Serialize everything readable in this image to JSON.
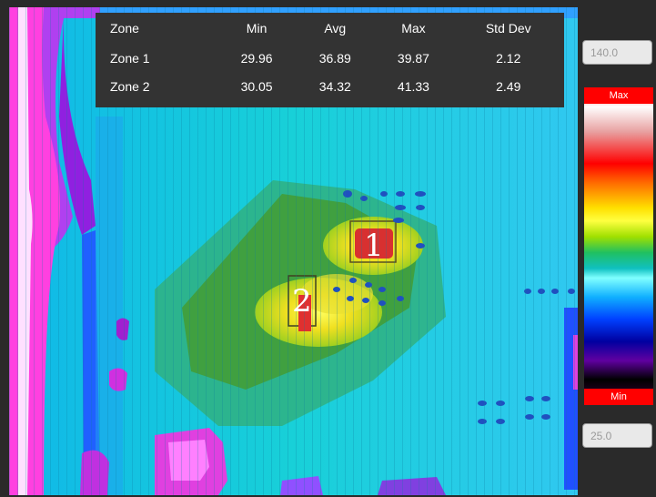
{
  "stats_table": {
    "headers": [
      "Zone",
      "Min",
      "Avg",
      "Max",
      "Std Dev"
    ],
    "rows": [
      [
        "Zone 1",
        "29.96",
        "36.89",
        "39.87",
        "2.12"
      ],
      [
        "Zone 2",
        "30.05",
        "34.32",
        "41.33",
        "2.49"
      ]
    ]
  },
  "scale": {
    "max_value": "140.0",
    "min_value": "25.0",
    "max_label": "Max",
    "min_label": "Min"
  },
  "zones": {
    "zone1_label": "1",
    "zone2_label": "2"
  },
  "colors": {
    "table_bg": "#333333",
    "label_red": "#ff0000"
  }
}
